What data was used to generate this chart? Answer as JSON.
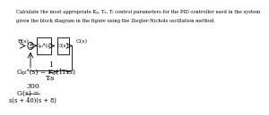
{
  "title_line1": "Calculate the most appropriate Kₚ, Tₓ, Tᵢ control parameters for the PID controller used in the system",
  "title_line2": "given the block diagram in the figure using the Ziegler-Nichols oscillation method.",
  "R_label": "R(s)",
  "C_label": "C(s)",
  "block1_label": "Gₚᵢᵈ(s)",
  "block2_label": "G(s)",
  "pid_lhs": "Gₚᵢᵈ(s) = Kₚ(1 +",
  "pid_num": "1",
  "pid_den": "Tᵢs",
  "pid_rhs": "+ Tₓs)",
  "gs_lhs": "G(s) =",
  "gs_num": "300",
  "gs_den": "s(s + 40)(s + 8)",
  "bg": "#ffffff",
  "fg": "#000000",
  "fs_title": 3.8,
  "fs_block": 4.5,
  "fs_formula": 5.5,
  "fs_formula_sm": 4.8
}
